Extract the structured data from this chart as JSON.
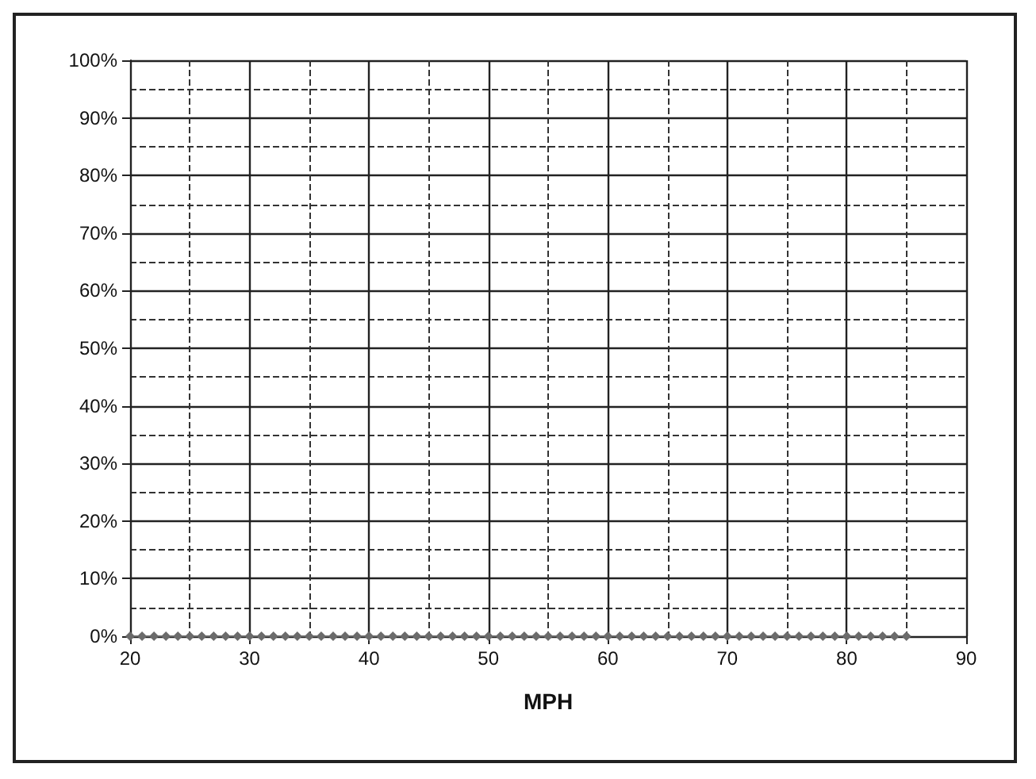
{
  "chart_data": {
    "type": "line",
    "xlabel": "MPH",
    "x": [
      20,
      21,
      22,
      23,
      24,
      25,
      26,
      27,
      28,
      29,
      30,
      31,
      32,
      33,
      34,
      35,
      36,
      37,
      38,
      39,
      40,
      41,
      42,
      43,
      44,
      45,
      46,
      47,
      48,
      49,
      50,
      51,
      52,
      53,
      54,
      55,
      56,
      57,
      58,
      59,
      60,
      61,
      62,
      63,
      64,
      65,
      66,
      67,
      68,
      69,
      70,
      71,
      72,
      73,
      74,
      75,
      76,
      77,
      78,
      79,
      80,
      81,
      82,
      83,
      84,
      85
    ],
    "series": [
      {
        "color": "#6b6b6b",
        "values": [
          0,
          0,
          0,
          0,
          0,
          0,
          0,
          0,
          0,
          0,
          0,
          0,
          0,
          0,
          0,
          0,
          0,
          0,
          0,
          0,
          0,
          0,
          0,
          0,
          0,
          0,
          0,
          0,
          0,
          0,
          0,
          0,
          0,
          0,
          0,
          0,
          0,
          0,
          0,
          0,
          0,
          0,
          0,
          0,
          0,
          0,
          0,
          0,
          0,
          0,
          0,
          0,
          0,
          0,
          0,
          0,
          0,
          0,
          0,
          0,
          0,
          0,
          0,
          0,
          0,
          0
        ]
      }
    ],
    "xlim": [
      20,
      90
    ],
    "xticks": [
      20,
      30,
      40,
      50,
      60,
      70,
      80,
      90
    ],
    "ylim": [
      0,
      100
    ],
    "yticks": [
      {
        "value": 0,
        "label": "0%"
      },
      {
        "value": 10,
        "label": "10%"
      },
      {
        "value": 20,
        "label": "20%"
      },
      {
        "value": 30,
        "label": "30%"
      },
      {
        "value": 40,
        "label": "40%"
      },
      {
        "value": 50,
        "label": "50%"
      },
      {
        "value": 60,
        "label": "60%"
      },
      {
        "value": 70,
        "label": "70%"
      },
      {
        "value": 80,
        "label": "80%"
      },
      {
        "value": 90,
        "label": "90%"
      },
      {
        "value": 100,
        "label": "100%"
      }
    ],
    "grid": true,
    "marker": "diamond"
  }
}
